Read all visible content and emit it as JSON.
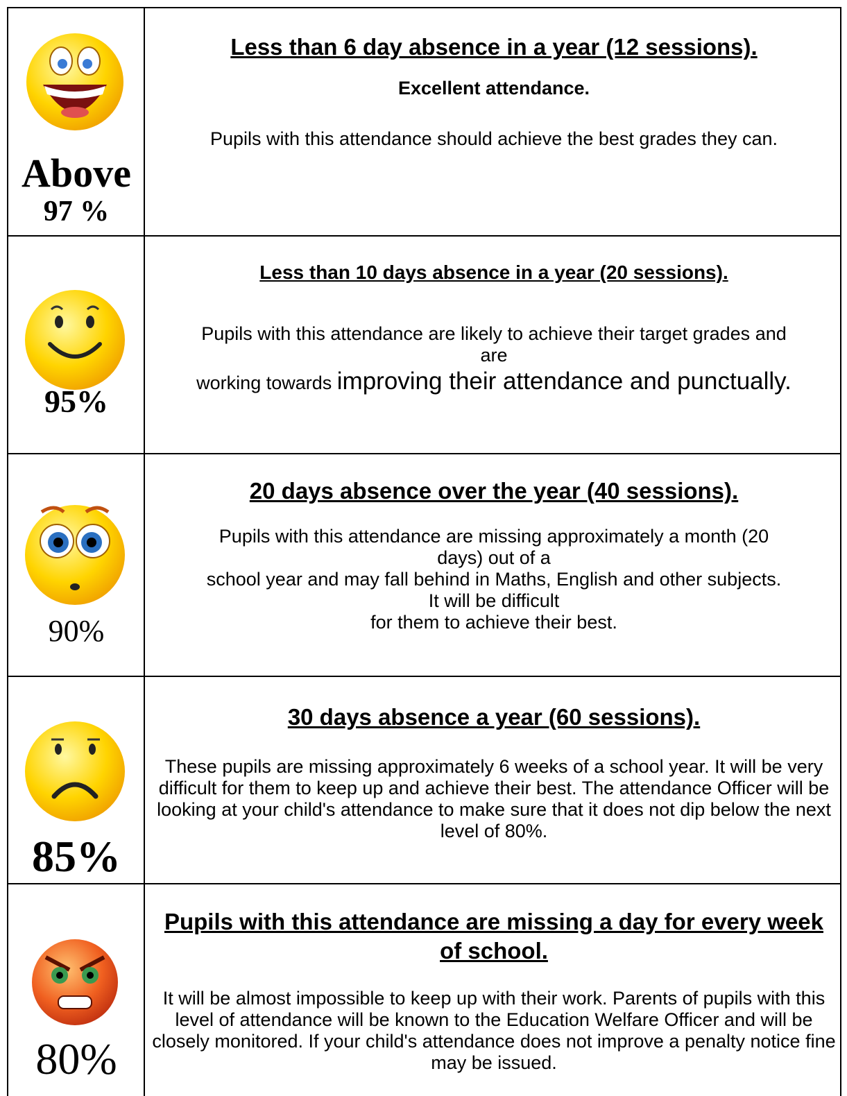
{
  "rows": [
    {
      "level": [
        "Above",
        "97 %"
      ],
      "heading": "Less than 6 day absence in a year (12 sessions).",
      "subheading": "Excellent attendance.",
      "body": [
        "Pupils with this attendance should achieve the best grades they can."
      ]
    },
    {
      "level": [
        "95%"
      ],
      "heading": "Less than 10 days absence in a year (20 sessions).",
      "body": [
        "Pupils with this attendance are likely to achieve their target grades and",
        "are",
        "working towards",
        "improving their attendance and punctually."
      ]
    },
    {
      "level": [
        "90%"
      ],
      "heading": "20 days absence over the year (40 sessions).",
      "body": [
        "Pupils with this attendance are missing approximately a month (20",
        "days) out of a",
        "school year and may fall behind in Maths, English and other subjects.",
        "It will be difficult",
        "for them to achieve their best."
      ]
    },
    {
      "level": [
        "85%"
      ],
      "heading": "30 days absence a year (60 sessions).",
      "body": [
        "These pupils are missing approximately 6 weeks of a school year. It will be very difficult for them to keep up and achieve their best. The attendance Officer will be looking at your child's attendance to make sure that it does not dip below the next level of 80%."
      ]
    },
    {
      "level": [
        "80%"
      ],
      "heading": "Pupils with this attendance are missing a day for every week of school.",
      "body": [
        "It will be almost impossible to keep up with their work. Parents of pupils with this level of attendance will be known to the Education Welfare Officer and will be closely monitored. If your child's attendance does not improve a penalty notice fine may be issued."
      ]
    }
  ]
}
